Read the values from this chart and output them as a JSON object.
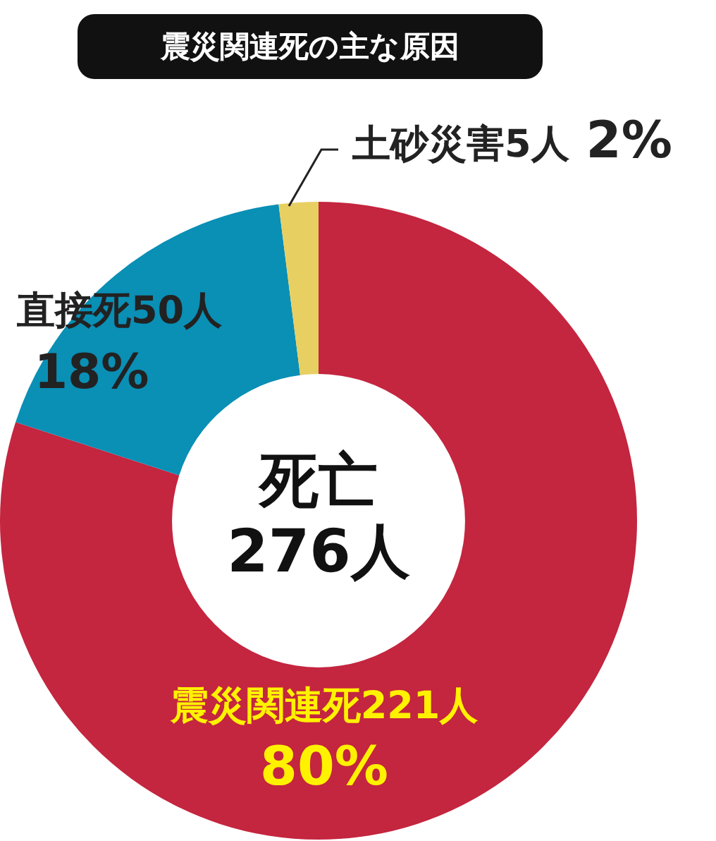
{
  "chart_data": {
    "type": "donut",
    "title": "震災関連死の主な原因",
    "categories": [
      "震災関連死221人",
      "直接死50人",
      "土砂災害5人"
    ],
    "values": [
      80,
      18,
      2
    ],
    "value_labels": [
      "80%",
      "18%",
      "2%"
    ],
    "colors": [
      "#c4253f",
      "#0a8fb5",
      "#e8cf62"
    ],
    "annotations": [
      "死亡\n276人"
    ],
    "legend": false
  }
}
